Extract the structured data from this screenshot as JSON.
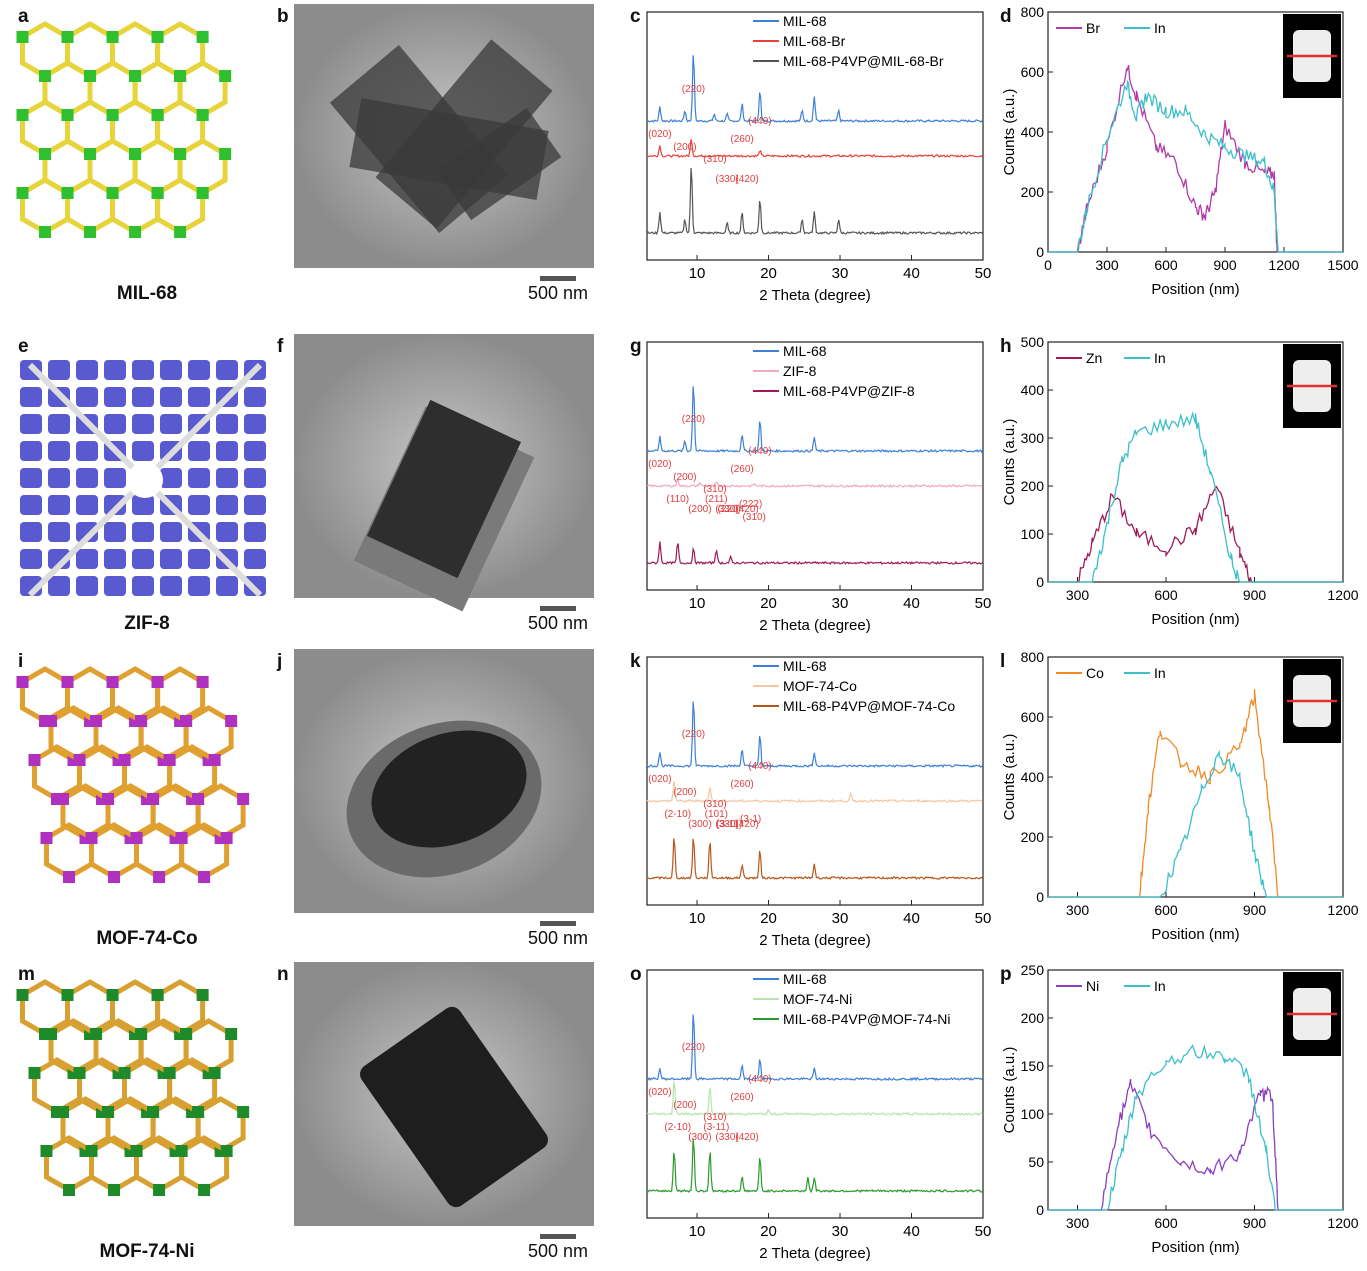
{
  "figure": {
    "rows": [
      {
        "letters": [
          "a",
          "b",
          "c",
          "d"
        ],
        "mof_name": "MIL-68",
        "scale_bar": "500 nm",
        "xrd": {
          "legend": [
            "MIL-68",
            "MIL-68-Br",
            "MIL-68-P4VP@MIL-68-Br"
          ],
          "colors": [
            "#3d7fd6",
            "#e8403a",
            "#555555"
          ],
          "annotations": [
            "(020)",
            "(200)",
            "(220)",
            "(310)",
            "(330)",
            "(260)",
            "(420)",
            "(440)"
          ],
          "xlabel": "2 Theta (degree)",
          "xticks": [
            "10",
            "20",
            "30",
            "40",
            "50"
          ]
        },
        "eds": {
          "legend": [
            "Br",
            "In"
          ],
          "colors": [
            "#b03aa8",
            "#3bbfc9"
          ],
          "ylabel": "Counts (a.u.)",
          "xlabel": "Position (nm)",
          "yticks": [
            "0",
            "200",
            "400",
            "600",
            "800"
          ],
          "xticks": [
            "0",
            "300",
            "600",
            "900",
            "1200",
            "1500"
          ]
        }
      },
      {
        "letters": [
          "e",
          "f",
          "g",
          "h"
        ],
        "mof_name": "ZIF-8",
        "scale_bar": "500 nm",
        "xrd": {
          "legend": [
            "MIL-68",
            "ZIF-8",
            "MIL-68-P4VP@ZIF-8"
          ],
          "colors": [
            "#3d7fd6",
            "#f2a9c0",
            "#a0195a"
          ],
          "annotations": [
            "(020)",
            "(200)",
            "(220)",
            "(310)",
            "(330)",
            "(260)",
            "(420)",
            "(440)",
            "(110)",
            "(200)",
            "(211)",
            "(220)",
            "(222)",
            "(310)"
          ],
          "xlabel": "2 Theta (degree)",
          "xticks": [
            "10",
            "20",
            "30",
            "40",
            "50"
          ]
        },
        "eds": {
          "legend": [
            "Zn",
            "In"
          ],
          "colors": [
            "#a0195a",
            "#3bbfc9"
          ],
          "ylabel": "Counts (a.u.)",
          "xlabel": "Position (nm)",
          "yticks": [
            "0",
            "100",
            "200",
            "300",
            "400",
            "500"
          ],
          "xticks": [
            "300",
            "600",
            "900",
            "1200"
          ]
        }
      },
      {
        "letters": [
          "i",
          "j",
          "k",
          "l"
        ],
        "mof_name": "MOF-74-Co",
        "scale_bar": "500 nm",
        "xrd": {
          "legend": [
            "MIL-68",
            "MOF-74-Co",
            "MIL-68-P4VP@MOF-74-Co"
          ],
          "colors": [
            "#3d7fd6",
            "#f5c7a3",
            "#b4581c"
          ],
          "annotations": [
            "(020)",
            "(200)",
            "(220)",
            "(310)",
            "(330)",
            "(260)",
            "(420)",
            "(440)",
            "(2-10)",
            "(300)",
            "(101)",
            "(3-11)",
            "(3-1)"
          ],
          "xlabel": "2 Theta   (degree)",
          "xticks": [
            "10",
            "20",
            "30",
            "40",
            "50"
          ]
        },
        "eds": {
          "legend": [
            "Co",
            "In"
          ],
          "colors": [
            "#f08a24",
            "#3bbfc9"
          ],
          "ylabel": "Counts (a.u.)",
          "xlabel": "Position (nm)",
          "yticks": [
            "0",
            "200",
            "400",
            "600",
            "800"
          ],
          "xticks": [
            "300",
            "600",
            "900",
            "1200"
          ]
        }
      },
      {
        "letters": [
          "m",
          "n",
          "o",
          "p"
        ],
        "mof_name": "MOF-74-Ni",
        "scale_bar": "500 nm",
        "xrd": {
          "legend": [
            "MIL-68",
            "MOF-74-Ni",
            "MIL-68-P4VP@MOF-74-Ni"
          ],
          "colors": [
            "#3d7fd6",
            "#b8e3b0",
            "#2a9a2a"
          ],
          "annotations": [
            "(020)",
            "(200)",
            "(220)",
            "(310)",
            "(330)",
            "(260)",
            "(420)",
            "(440)",
            "(2-10)",
            "(300)",
            "(3-11)"
          ],
          "xlabel": "2 Theta  (degree)",
          "xticks": [
            "10",
            "20",
            "30",
            "40",
            "50"
          ]
        },
        "eds": {
          "legend": [
            "Ni",
            "In"
          ],
          "colors": [
            "#8a3fbf",
            "#3bbfc9"
          ],
          "ylabel": "Counts (a.u.)",
          "xlabel": "Position (nm)",
          "yticks": [
            "0",
            "50",
            "100",
            "150",
            "200",
            "250"
          ],
          "xticks": [
            "300",
            "600",
            "900",
            "1200"
          ]
        }
      }
    ]
  },
  "chart_data": [
    {
      "type": "line",
      "panel": "c",
      "xlabel": "2 Theta (degree)",
      "ylabel": "",
      "xlim": [
        3,
        50
      ],
      "series": [
        {
          "name": "MIL-68",
          "peaks": [
            [
              4.8,
              0.2
            ],
            [
              8.3,
              0.15
            ],
            [
              9.5,
              1.0
            ],
            [
              12.4,
              0.1
            ],
            [
              14.2,
              0.1
            ],
            [
              16.3,
              0.25
            ],
            [
              18.8,
              0.45
            ],
            [
              24.7,
              0.15
            ],
            [
              26.4,
              0.35
            ],
            [
              29.8,
              0.15
            ]
          ]
        },
        {
          "name": "MIL-68-Br",
          "peaks": [
            [
              4.8,
              0.15
            ],
            [
              9.2,
              0.25
            ],
            [
              18.8,
              0.08
            ]
          ]
        },
        {
          "name": "MIL-68-P4VP@MIL-68-Br",
          "peaks": [
            [
              4.8,
              0.3
            ],
            [
              8.3,
              0.2
            ],
            [
              9.2,
              1.0
            ],
            [
              14.2,
              0.15
            ],
            [
              16.3,
              0.3
            ],
            [
              18.8,
              0.5
            ],
            [
              24.7,
              0.2
            ],
            [
              26.4,
              0.3
            ],
            [
              29.8,
              0.2
            ]
          ]
        }
      ]
    },
    {
      "type": "line",
      "panel": "d",
      "xlabel": "Position (nm)",
      "ylabel": "Counts (a.u.)",
      "xlim": [
        0,
        1500
      ],
      "ylim": [
        0,
        800
      ],
      "series": [
        {
          "name": "Br",
          "points": [
            [
              150,
              0
            ],
            [
              200,
              150
            ],
            [
              300,
              350
            ],
            [
              400,
              620
            ],
            [
              450,
              520
            ],
            [
              550,
              350
            ],
            [
              650,
              300
            ],
            [
              750,
              150
            ],
            [
              800,
              120
            ],
            [
              850,
              200
            ],
            [
              900,
              420
            ],
            [
              1000,
              300
            ],
            [
              1100,
              260
            ],
            [
              1150,
              260
            ],
            [
              1165,
              0
            ]
          ]
        },
        {
          "name": "In",
          "points": [
            [
              150,
              0
            ],
            [
              200,
              150
            ],
            [
              300,
              380
            ],
            [
              400,
              560
            ],
            [
              450,
              450
            ],
            [
              500,
              520
            ],
            [
              600,
              470
            ],
            [
              700,
              470
            ],
            [
              800,
              390
            ],
            [
              900,
              350
            ],
            [
              1000,
              320
            ],
            [
              1100,
              300
            ],
            [
              1150,
              200
            ],
            [
              1170,
              0
            ],
            [
              1300,
              0
            ]
          ]
        }
      ]
    },
    {
      "type": "line",
      "panel": "g",
      "xlabel": "2 Theta (degree)",
      "ylabel": "",
      "xlim": [
        3,
        50
      ],
      "series": [
        {
          "name": "MIL-68",
          "peaks": [
            [
              4.8,
              0.2
            ],
            [
              8.3,
              0.15
            ],
            [
              9.5,
              1.0
            ],
            [
              16.3,
              0.25
            ],
            [
              18.8,
              0.45
            ],
            [
              26.4,
              0.2
            ]
          ]
        },
        {
          "name": "ZIF-8",
          "peaks": [
            [
              7.3,
              0.1
            ],
            [
              10.4,
              0.05
            ],
            [
              12.7,
              0.05
            ],
            [
              18.0,
              0.03
            ]
          ]
        },
        {
          "name": "MIL-68-P4VP@ZIF-8",
          "peaks": [
            [
              4.8,
              0.3
            ],
            [
              7.3,
              0.3
            ],
            [
              9.5,
              0.2
            ],
            [
              12.7,
              0.2
            ],
            [
              14.7,
              0.08
            ]
          ]
        }
      ]
    },
    {
      "type": "line",
      "panel": "h",
      "xlabel": "Position (nm)",
      "ylabel": "Counts (a.u.)",
      "xlim": [
        200,
        1200
      ],
      "ylim": [
        0,
        500
      ],
      "series": [
        {
          "name": "Zn",
          "points": [
            [
              300,
              0
            ],
            [
              350,
              80
            ],
            [
              420,
              180
            ],
            [
              500,
              100
            ],
            [
              600,
              70
            ],
            [
              700,
              110
            ],
            [
              770,
              200
            ],
            [
              850,
              60
            ],
            [
              890,
              0
            ]
          ]
        },
        {
          "name": "In",
          "points": [
            [
              350,
              0
            ],
            [
              400,
              120
            ],
            [
              450,
              250
            ],
            [
              500,
              310
            ],
            [
              600,
              330
            ],
            [
              700,
              340
            ],
            [
              750,
              230
            ],
            [
              820,
              50
            ],
            [
              850,
              0
            ]
          ]
        }
      ]
    },
    {
      "type": "line",
      "panel": "k",
      "xlabel": "2 Theta   (degree)",
      "ylabel": "",
      "xlim": [
        3,
        50
      ],
      "series": [
        {
          "name": "MIL-68",
          "peaks": [
            [
              4.8,
              0.2
            ],
            [
              9.5,
              1.0
            ],
            [
              16.3,
              0.25
            ],
            [
              18.8,
              0.45
            ],
            [
              26.4,
              0.2
            ]
          ]
        },
        {
          "name": "MOF-74-Co",
          "peaks": [
            [
              6.8,
              0.3
            ],
            [
              11.8,
              0.2
            ],
            [
              31.5,
              0.1
            ]
          ]
        },
        {
          "name": "MIL-68-P4VP@MOF-74-Co",
          "peaks": [
            [
              6.8,
              0.6
            ],
            [
              9.5,
              0.6
            ],
            [
              11.8,
              0.55
            ],
            [
              16.3,
              0.2
            ],
            [
              18.8,
              0.4
            ],
            [
              26.4,
              0.2
            ]
          ]
        }
      ]
    },
    {
      "type": "line",
      "panel": "l",
      "xlabel": "Position (nm)",
      "ylabel": "Counts (a.u.)",
      "xlim": [
        200,
        1200
      ],
      "ylim": [
        0,
        800
      ],
      "series": [
        {
          "name": "Co",
          "points": [
            [
              510,
              0
            ],
            [
              540,
              300
            ],
            [
              580,
              560
            ],
            [
              650,
              450
            ],
            [
              750,
              400
            ],
            [
              850,
              500
            ],
            [
              900,
              670
            ],
            [
              950,
              300
            ],
            [
              980,
              0
            ]
          ]
        },
        {
          "name": "In",
          "points": [
            [
              580,
              0
            ],
            [
              650,
              150
            ],
            [
              720,
              350
            ],
            [
              780,
              480
            ],
            [
              850,
              400
            ],
            [
              900,
              150
            ],
            [
              940,
              0
            ]
          ]
        }
      ]
    },
    {
      "type": "line",
      "panel": "o",
      "xlabel": "2 Theta  (degree)",
      "ylabel": "",
      "xlim": [
        3,
        50
      ],
      "series": [
        {
          "name": "MIL-68",
          "peaks": [
            [
              4.8,
              0.15
            ],
            [
              9.5,
              1.0
            ],
            [
              16.3,
              0.2
            ],
            [
              18.8,
              0.3
            ],
            [
              26.4,
              0.15
            ]
          ]
        },
        {
          "name": "MOF-74-Ni",
          "peaks": [
            [
              6.8,
              0.5
            ],
            [
              11.8,
              0.4
            ],
            [
              20.0,
              0.05
            ]
          ]
        },
        {
          "name": "MIL-68-P4VP@MOF-74-Ni",
          "peaks": [
            [
              6.8,
              0.6
            ],
            [
              9.5,
              0.8
            ],
            [
              11.8,
              0.6
            ],
            [
              16.3,
              0.2
            ],
            [
              18.8,
              0.5
            ],
            [
              25.5,
              0.2
            ],
            [
              26.4,
              0.2
            ]
          ]
        }
      ]
    },
    {
      "type": "line",
      "panel": "p",
      "xlabel": "Position (nm)",
      "ylabel": "Counts (a.u.)",
      "xlim": [
        200,
        1200
      ],
      "ylim": [
        0,
        250
      ],
      "series": [
        {
          "name": "Ni",
          "points": [
            [
              380,
              0
            ],
            [
              430,
              80
            ],
            [
              480,
              130
            ],
            [
              550,
              80
            ],
            [
              650,
              50
            ],
            [
              750,
              40
            ],
            [
              850,
              60
            ],
            [
              920,
              120
            ],
            [
              960,
              120
            ],
            [
              980,
              0
            ]
          ]
        },
        {
          "name": "In",
          "points": [
            [
              400,
              0
            ],
            [
              450,
              60
            ],
            [
              500,
              120
            ],
            [
              600,
              155
            ],
            [
              700,
              165
            ],
            [
              800,
              160
            ],
            [
              880,
              140
            ],
            [
              940,
              60
            ],
            [
              970,
              0
            ]
          ]
        }
      ]
    }
  ]
}
